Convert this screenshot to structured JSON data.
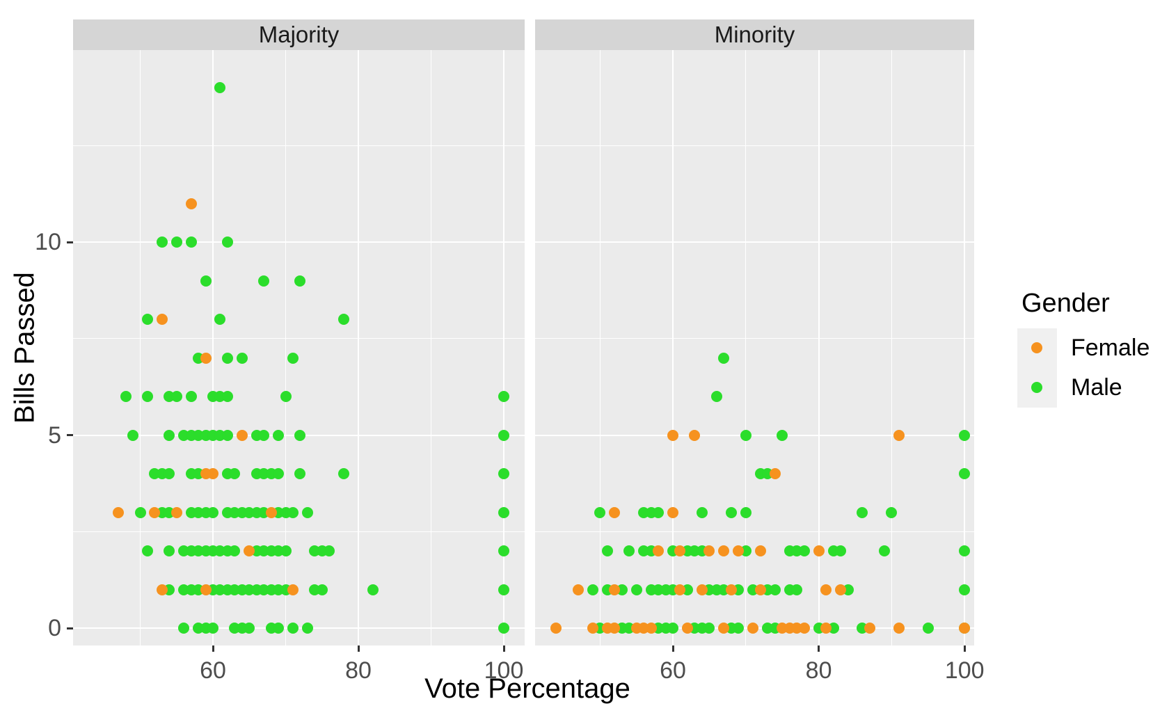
{
  "chart_data": {
    "type": "scatter",
    "xlabel": "Vote Percentage",
    "ylabel": "Bills Passed",
    "x_ticks": [
      60,
      80,
      100
    ],
    "x_minor_gridlines": [
      50,
      70,
      90
    ],
    "y_ticks": [
      0,
      5,
      10
    ],
    "y_minor_gridlines": [
      2.5,
      7.5,
      12.5
    ],
    "xlim": [
      41,
      103
    ],
    "ylim": [
      -0.5,
      15
    ],
    "grid": "on",
    "legend_position": "right",
    "legend": {
      "title": "Gender",
      "entries": [
        {
          "label": "Female",
          "color": "#f6921f"
        },
        {
          "label": "Male",
          "color": "#2bdd2b"
        }
      ]
    },
    "facets": [
      {
        "label": "Majority",
        "female": [
          [
            57,
            11
          ],
          [
            53,
            8
          ],
          [
            59,
            7
          ],
          [
            64,
            5
          ],
          [
            59,
            4
          ],
          [
            60,
            4
          ],
          [
            47,
            3
          ],
          [
            52,
            3
          ],
          [
            55,
            3
          ],
          [
            68,
            3
          ],
          [
            65,
            2
          ],
          [
            53,
            1
          ],
          [
            59,
            1
          ],
          [
            71,
            1
          ]
        ],
        "male": [
          [
            61,
            14
          ],
          [
            53,
            10
          ],
          [
            55,
            10
          ],
          [
            57,
            10
          ],
          [
            62,
            10
          ],
          [
            59,
            9
          ],
          [
            67,
            9
          ],
          [
            72,
            9
          ],
          [
            51,
            8
          ],
          [
            61,
            8
          ],
          [
            78,
            8
          ],
          [
            58,
            7
          ],
          [
            62,
            7
          ],
          [
            64,
            7
          ],
          [
            71,
            7
          ],
          [
            48,
            6
          ],
          [
            51,
            6
          ],
          [
            54,
            6
          ],
          [
            55,
            6
          ],
          [
            57,
            6
          ],
          [
            60,
            6
          ],
          [
            61,
            6
          ],
          [
            62,
            6
          ],
          [
            70,
            6
          ],
          [
            100,
            6
          ],
          [
            49,
            5
          ],
          [
            54,
            5
          ],
          [
            56,
            5
          ],
          [
            57,
            5
          ],
          [
            58,
            5
          ],
          [
            59,
            5
          ],
          [
            60,
            5
          ],
          [
            61,
            5
          ],
          [
            62,
            5
          ],
          [
            66,
            5
          ],
          [
            67,
            5
          ],
          [
            69,
            5
          ],
          [
            72,
            5
          ],
          [
            100,
            5
          ],
          [
            52,
            4
          ],
          [
            53,
            4
          ],
          [
            54,
            4
          ],
          [
            57,
            4
          ],
          [
            58,
            4
          ],
          [
            62,
            4
          ],
          [
            63,
            4
          ],
          [
            66,
            4
          ],
          [
            67,
            4
          ],
          [
            68,
            4
          ],
          [
            69,
            4
          ],
          [
            72,
            4
          ],
          [
            78,
            4
          ],
          [
            100,
            4
          ],
          [
            50,
            3
          ],
          [
            53,
            3
          ],
          [
            54,
            3
          ],
          [
            57,
            3
          ],
          [
            58,
            3
          ],
          [
            59,
            3
          ],
          [
            60,
            3
          ],
          [
            62,
            3
          ],
          [
            63,
            3
          ],
          [
            64,
            3
          ],
          [
            65,
            3
          ],
          [
            66,
            3
          ],
          [
            67,
            3
          ],
          [
            69,
            3
          ],
          [
            70,
            3
          ],
          [
            71,
            3
          ],
          [
            73,
            3
          ],
          [
            100,
            3
          ],
          [
            51,
            2
          ],
          [
            54,
            2
          ],
          [
            56,
            2
          ],
          [
            57,
            2
          ],
          [
            58,
            2
          ],
          [
            59,
            2
          ],
          [
            60,
            2
          ],
          [
            61,
            2
          ],
          [
            62,
            2
          ],
          [
            63,
            2
          ],
          [
            66,
            2
          ],
          [
            67,
            2
          ],
          [
            68,
            2
          ],
          [
            69,
            2
          ],
          [
            70,
            2
          ],
          [
            74,
            2
          ],
          [
            75,
            2
          ],
          [
            76,
            2
          ],
          [
            100,
            2
          ],
          [
            54,
            1
          ],
          [
            56,
            1
          ],
          [
            57,
            1
          ],
          [
            58,
            1
          ],
          [
            60,
            1
          ],
          [
            61,
            1
          ],
          [
            62,
            1
          ],
          [
            63,
            1
          ],
          [
            64,
            1
          ],
          [
            65,
            1
          ],
          [
            66,
            1
          ],
          [
            67,
            1
          ],
          [
            68,
            1
          ],
          [
            69,
            1
          ],
          [
            70,
            1
          ],
          [
            74,
            1
          ],
          [
            75,
            1
          ],
          [
            82,
            1
          ],
          [
            100,
            1
          ],
          [
            56,
            0
          ],
          [
            58,
            0
          ],
          [
            59,
            0
          ],
          [
            60,
            0
          ],
          [
            63,
            0
          ],
          [
            64,
            0
          ],
          [
            65,
            0
          ],
          [
            68,
            0
          ],
          [
            69,
            0
          ],
          [
            71,
            0
          ],
          [
            73,
            0
          ],
          [
            100,
            0
          ]
        ]
      },
      {
        "label": "Minority",
        "female": [
          [
            60,
            5
          ],
          [
            63,
            5
          ],
          [
            91,
            5
          ],
          [
            74,
            4
          ],
          [
            52,
            3
          ],
          [
            60,
            3
          ],
          [
            58,
            2
          ],
          [
            61,
            2
          ],
          [
            65,
            2
          ],
          [
            67,
            2
          ],
          [
            69,
            2
          ],
          [
            72,
            2
          ],
          [
            80,
            2
          ],
          [
            47,
            1
          ],
          [
            52,
            1
          ],
          [
            61,
            1
          ],
          [
            64,
            1
          ],
          [
            68,
            1
          ],
          [
            72,
            1
          ],
          [
            81,
            1
          ],
          [
            83,
            1
          ],
          [
            44,
            0
          ],
          [
            49,
            0
          ],
          [
            51,
            0
          ],
          [
            52,
            0
          ],
          [
            55,
            0
          ],
          [
            56,
            0
          ],
          [
            57,
            0
          ],
          [
            62,
            0
          ],
          [
            67,
            0
          ],
          [
            71,
            0
          ],
          [
            75,
            0
          ],
          [
            76,
            0
          ],
          [
            77,
            0
          ],
          [
            78,
            0
          ],
          [
            81,
            0
          ],
          [
            87,
            0
          ],
          [
            91,
            0
          ],
          [
            100,
            0
          ]
        ],
        "male": [
          [
            67,
            7
          ],
          [
            66,
            6
          ],
          [
            70,
            5
          ],
          [
            75,
            5
          ],
          [
            100,
            5
          ],
          [
            72,
            4
          ],
          [
            73,
            4
          ],
          [
            100,
            4
          ],
          [
            50,
            3
          ],
          [
            56,
            3
          ],
          [
            57,
            3
          ],
          [
            58,
            3
          ],
          [
            64,
            3
          ],
          [
            68,
            3
          ],
          [
            70,
            3
          ],
          [
            86,
            3
          ],
          [
            90,
            3
          ],
          [
            51,
            2
          ],
          [
            54,
            2
          ],
          [
            56,
            2
          ],
          [
            57,
            2
          ],
          [
            60,
            2
          ],
          [
            62,
            2
          ],
          [
            63,
            2
          ],
          [
            64,
            2
          ],
          [
            70,
            2
          ],
          [
            76,
            2
          ],
          [
            77,
            2
          ],
          [
            78,
            2
          ],
          [
            82,
            2
          ],
          [
            83,
            2
          ],
          [
            89,
            2
          ],
          [
            100,
            2
          ],
          [
            49,
            1
          ],
          [
            51,
            1
          ],
          [
            53,
            1
          ],
          [
            55,
            1
          ],
          [
            57,
            1
          ],
          [
            58,
            1
          ],
          [
            59,
            1
          ],
          [
            60,
            1
          ],
          [
            62,
            1
          ],
          [
            65,
            1
          ],
          [
            66,
            1
          ],
          [
            67,
            1
          ],
          [
            69,
            1
          ],
          [
            71,
            1
          ],
          [
            73,
            1
          ],
          [
            74,
            1
          ],
          [
            76,
            1
          ],
          [
            77,
            1
          ],
          [
            84,
            1
          ],
          [
            100,
            1
          ],
          [
            50,
            0
          ],
          [
            53,
            0
          ],
          [
            54,
            0
          ],
          [
            58,
            0
          ],
          [
            59,
            0
          ],
          [
            60,
            0
          ],
          [
            63,
            0
          ],
          [
            64,
            0
          ],
          [
            65,
            0
          ],
          [
            68,
            0
          ],
          [
            69,
            0
          ],
          [
            73,
            0
          ],
          [
            74,
            0
          ],
          [
            80,
            0
          ],
          [
            82,
            0
          ],
          [
            86,
            0
          ],
          [
            95,
            0
          ],
          [
            100,
            0
          ]
        ]
      }
    ]
  }
}
